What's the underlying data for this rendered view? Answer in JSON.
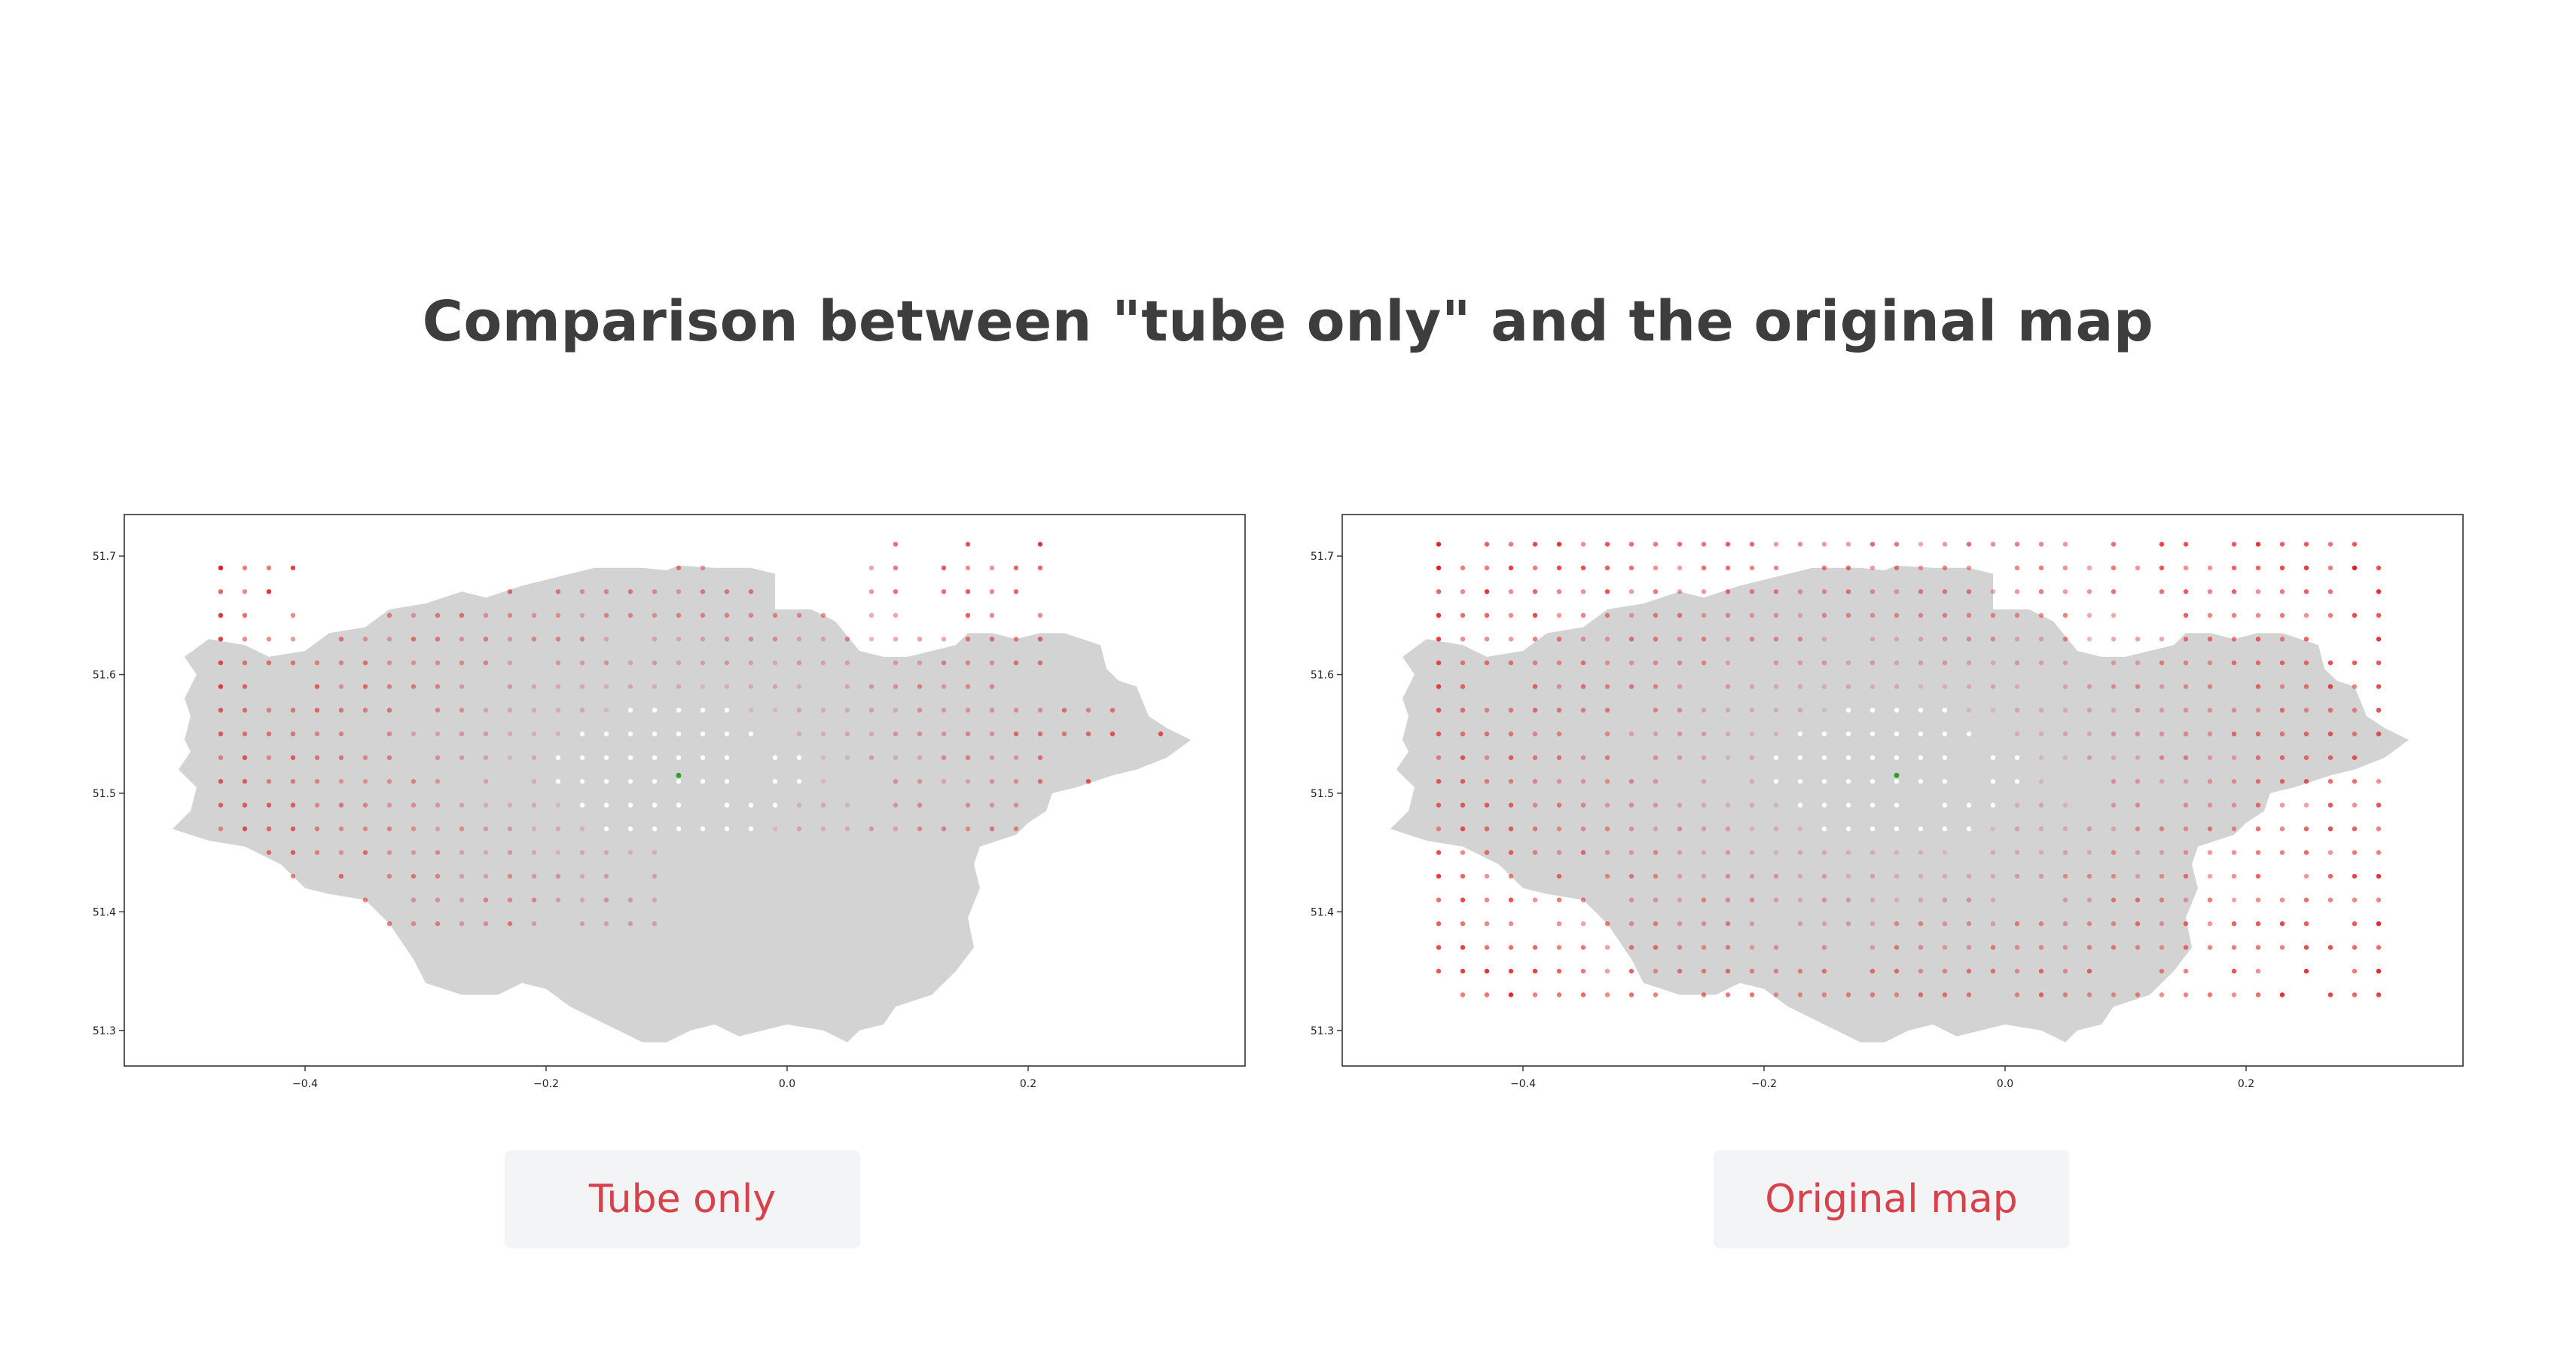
{
  "title": "Comparison between \"tube only\" and the original map",
  "colors": {
    "land": "#d3d3d3",
    "axes_frame": "#333333",
    "dot_red": "#e41a1c",
    "dot_white": "#ffffff",
    "origin_marker": "#2ca02c",
    "caption_text": "#d8404a",
    "caption_bg": "#f3f4f6"
  },
  "captions": {
    "left": "Tube only",
    "right": "Original map"
  },
  "chart_data": [
    {
      "type": "scatter",
      "xlim": [
        -0.55,
        0.38
      ],
      "ylim": [
        51.27,
        51.735
      ],
      "xticks": [
        -0.4,
        -0.2,
        0.0,
        0.2
      ],
      "xtick_labels": [
        "−0.4",
        "−0.2",
        "0.0",
        "0.2"
      ],
      "yticks": [
        51.3,
        51.4,
        51.5,
        51.6,
        51.7
      ],
      "ytick_labels": [
        "51.3",
        "51.4",
        "51.5",
        "51.6",
        "51.7"
      ],
      "grid": false,
      "legend": "none",
      "origin_point": [
        -0.09,
        51.515
      ],
      "grid_points": {
        "x_start": -0.47,
        "x_step": 0.02,
        "x_count": 40,
        "y_start": 51.33,
        "y_step": 0.02,
        "y_count": 20
      },
      "coverage": "tube"
    },
    {
      "type": "scatter",
      "xlim": [
        -0.55,
        0.38
      ],
      "ylim": [
        51.27,
        51.735
      ],
      "xticks": [
        -0.4,
        -0.2,
        0.0,
        0.2
      ],
      "xtick_labels": [
        "−0.4",
        "−0.2",
        "0.0",
        "0.2"
      ],
      "yticks": [
        51.3,
        51.4,
        51.5,
        51.6,
        51.7
      ],
      "ytick_labels": [
        "51.3",
        "51.4",
        "51.5",
        "51.6",
        "51.7"
      ],
      "grid": false,
      "legend": "none",
      "origin_point": [
        -0.09,
        51.515
      ],
      "grid_points": {
        "x_start": -0.47,
        "x_step": 0.02,
        "x_count": 40,
        "y_start": 51.33,
        "y_step": 0.02,
        "y_count": 20
      },
      "coverage": "full"
    }
  ]
}
